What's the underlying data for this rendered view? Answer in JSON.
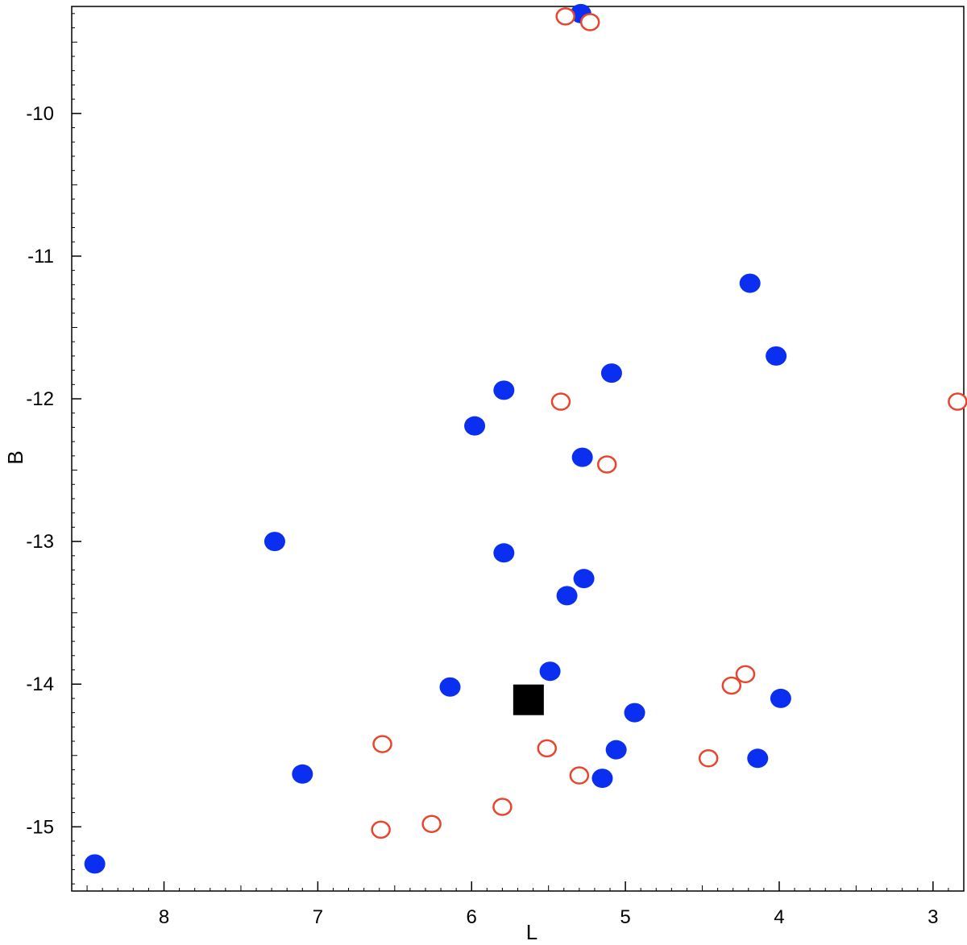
{
  "chart_data": {
    "type": "scatter",
    "xlabel": "L",
    "ylabel": "B",
    "x_reversed": true,
    "xlim": [
      8.6,
      2.8
    ],
    "ylim": [
      -15.45,
      -9.25
    ],
    "xticks": [
      8,
      7,
      6,
      5,
      4,
      3
    ],
    "yticks": [
      -10,
      -11,
      -12,
      -13,
      -14,
      -15
    ],
    "grid": false,
    "colors": {
      "filled": "#0a2ff0",
      "open": "#e8452c",
      "marker": "#000000"
    },
    "series": [
      {
        "style": "filled-circle",
        "points": [
          [
            5.29,
            -9.3
          ],
          [
            4.19,
            -11.19
          ],
          [
            4.02,
            -11.7
          ],
          [
            5.09,
            -11.82
          ],
          [
            5.79,
            -11.94
          ],
          [
            5.98,
            -12.19
          ],
          [
            5.28,
            -12.41
          ],
          [
            7.28,
            -13.0
          ],
          [
            5.79,
            -13.08
          ],
          [
            5.27,
            -13.26
          ],
          [
            5.38,
            -13.38
          ],
          [
            5.49,
            -13.91
          ],
          [
            6.14,
            -14.02
          ],
          [
            3.99,
            -14.1
          ],
          [
            4.94,
            -14.2
          ],
          [
            5.06,
            -14.46
          ],
          [
            4.14,
            -14.52
          ],
          [
            5.15,
            -14.66
          ],
          [
            7.1,
            -14.63
          ],
          [
            8.45,
            -15.26
          ]
        ]
      },
      {
        "style": "open-circle",
        "points": [
          [
            5.39,
            -9.32
          ],
          [
            5.23,
            -9.36
          ],
          [
            5.42,
            -12.02
          ],
          [
            5.12,
            -12.46
          ],
          [
            2.84,
            -12.02
          ],
          [
            4.22,
            -13.93
          ],
          [
            4.31,
            -14.01
          ],
          [
            6.58,
            -14.42
          ],
          [
            5.51,
            -14.45
          ],
          [
            4.46,
            -14.52
          ],
          [
            5.3,
            -14.64
          ],
          [
            5.8,
            -14.86
          ],
          [
            6.26,
            -14.98
          ],
          [
            6.59,
            -15.02
          ]
        ]
      },
      {
        "style": "filled-square",
        "points": [
          [
            5.63,
            -14.11
          ]
        ]
      }
    ]
  }
}
